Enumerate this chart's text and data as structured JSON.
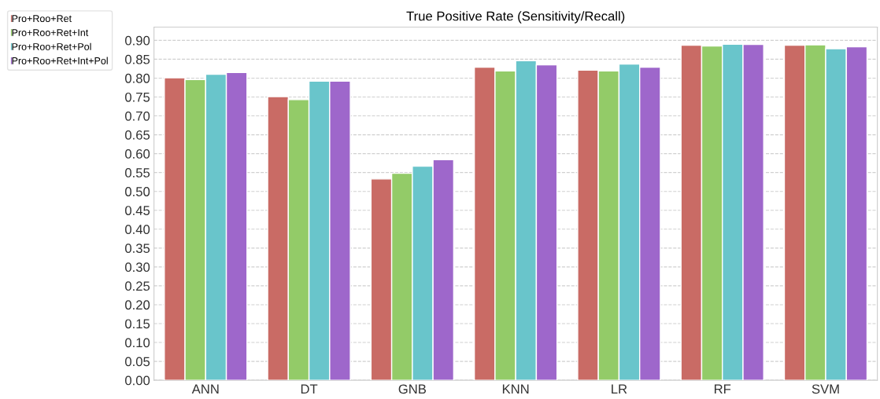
{
  "chart_data": {
    "type": "bar",
    "title": "True Positive Rate (Sensitivity/Recall)",
    "categories": [
      "ANN",
      "DT",
      "GNB",
      "KNN",
      "LR",
      "RF",
      "SVM"
    ],
    "series": [
      {
        "name": "Pro+Roo+Ret",
        "color": "#c96b65",
        "values": [
          0.801,
          0.751,
          0.533,
          0.829,
          0.821,
          0.887,
          0.887
        ]
      },
      {
        "name": "Pro+Roo+Ret+Int",
        "color": "#93cb68",
        "values": [
          0.796,
          0.743,
          0.548,
          0.819,
          0.819,
          0.885,
          0.888
        ]
      },
      {
        "name": "Pro+Roo+Ret+Pol",
        "color": "#69c5cb",
        "values": [
          0.81,
          0.792,
          0.567,
          0.846,
          0.837,
          0.89,
          0.878
        ]
      },
      {
        "name": "Pro+Roo+Ret+Int+Pol",
        "color": "#9e67cb",
        "values": [
          0.815,
          0.792,
          0.584,
          0.835,
          0.829,
          0.889,
          0.883
        ]
      }
    ],
    "ylim": [
      0,
      0.935
    ],
    "yticks": [
      {
        "value": 0,
        "label": "0.00"
      },
      {
        "value": 0.05,
        "label": "0.05"
      },
      {
        "value": 0.1,
        "label": "0.10"
      },
      {
        "value": 0.15,
        "label": "0.15"
      },
      {
        "value": 0.2,
        "label": "0.20"
      },
      {
        "value": 0.25,
        "label": "0.25"
      },
      {
        "value": 0.3,
        "label": "0.30"
      },
      {
        "value": 0.35,
        "label": "0.35"
      },
      {
        "value": 0.4,
        "label": "0.40"
      },
      {
        "value": 0.45,
        "label": "0.45"
      },
      {
        "value": 0.5,
        "label": "0.50"
      },
      {
        "value": 0.55,
        "label": "0.55"
      },
      {
        "value": 0.6,
        "label": "0.60"
      },
      {
        "value": 0.65,
        "label": "0.65"
      },
      {
        "value": 0.7,
        "label": "0.70"
      },
      {
        "value": 0.75,
        "label": "0.75"
      },
      {
        "value": 0.8,
        "label": "0.80"
      },
      {
        "value": 0.85,
        "label": "0.85"
      },
      {
        "value": 0.9,
        "label": "0.90"
      }
    ],
    "grid": "y",
    "legend": "top left"
  }
}
